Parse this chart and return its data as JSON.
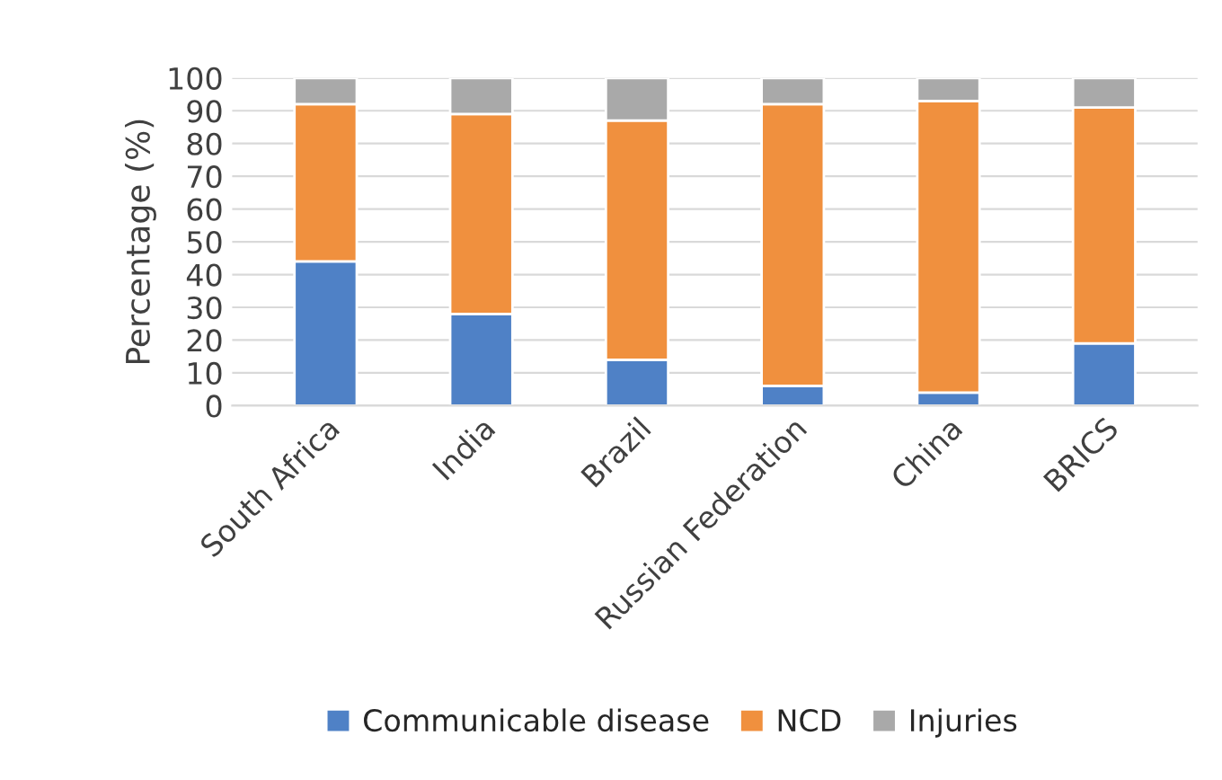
{
  "chart_data": {
    "type": "bar",
    "stacked": true,
    "ylabel": "Percentage (%)",
    "categories": [
      "South Africa",
      "India",
      "Brazil",
      "Russian Federation",
      "China",
      "BRICS"
    ],
    "series": [
      {
        "name": "Communicable disease",
        "color": "#4f81c6",
        "values": [
          44,
          28,
          14,
          6,
          4,
          19
        ]
      },
      {
        "name": "NCD",
        "color": "#f0903e",
        "values": [
          48,
          61,
          73,
          86,
          89,
          72
        ]
      },
      {
        "name": "Injuries",
        "color": "#a9a9a9",
        "values": [
          8,
          11,
          13,
          8,
          7,
          9
        ]
      }
    ],
    "ylim": [
      0,
      100
    ],
    "yticks": [
      0,
      10,
      20,
      30,
      40,
      50,
      60,
      70,
      80,
      90,
      100
    ],
    "grid": "y",
    "legend": "bottom"
  }
}
